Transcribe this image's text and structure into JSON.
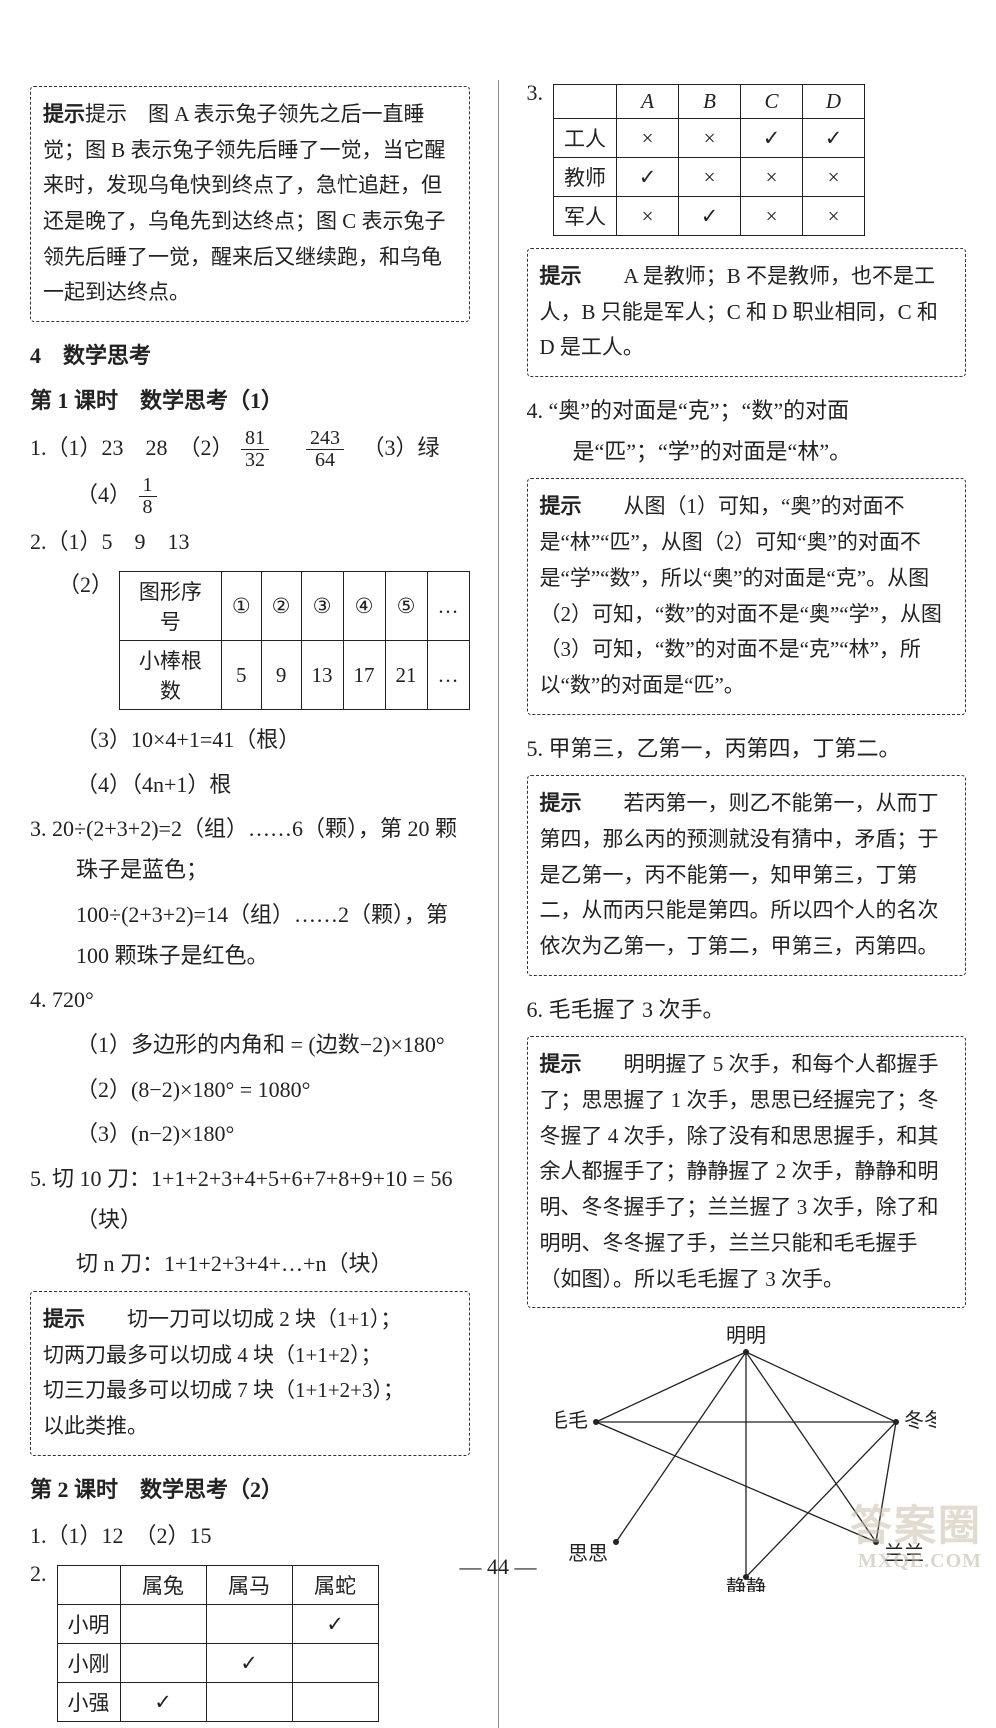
{
  "left": {
    "box1": "提示　图 A 表示兔子领先之后一直睡觉；图 B 表示兔子领先后睡了一觉，当它醒来时，发现乌龟快到终点了，急忙追赶，但还是晚了，乌龟先到达终点；图 C 表示兔子领先后睡了一觉，醒来后又继续跑，和乌龟一起到达终点。",
    "sec4": "4　数学思考",
    "lesson1": "第 1 课时　数学思考（1）",
    "q1a": "1.（1）23　28　（2）",
    "q1b": "　（3）绿",
    "q1c": "（4）",
    "q2a": "2.（1）5　9　13",
    "q2b": "（2）",
    "table1_headers": [
      "图形序号",
      "①",
      "②",
      "③",
      "④",
      "⑤",
      "…"
    ],
    "table1_row": [
      "小棒根数",
      "5",
      "9",
      "13",
      "17",
      "21",
      "…"
    ],
    "q2c": "（3）10×4+1=41（根）",
    "q2d": "（4）（4n+1）根",
    "q3a": "3. 20÷(2+3+2)=2（组）……6（颗），第 20 颗珠子是蓝色；",
    "q3b": "100÷(2+3+2)=14（组）……2（颗），第 100 颗珠子是红色。",
    "q4a": "4. 720°",
    "q4b": "（1）多边形的内角和 = (边数−2)×180°",
    "q4c": "（2）(8−2)×180° = 1080°",
    "q4d": "（3）(n−2)×180°",
    "q5a": "5. 切 10 刀：1+1+2+3+4+5+6+7+8+9+10 = 56（块）",
    "q5b": "切 n 刀：1+1+2+3+4+…+n（块）",
    "box2": "提示　切一刀可以切成 2 块（1+1）；\n切两刀最多可以切成 4 块（1+1+2）；\n切三刀最多可以切成 7 块（1+1+2+3）；\n以此类推。",
    "lesson2": "第 2 课时　数学思考（2）",
    "l2q1": "1.（1）12　（2）15",
    "l2q2": "2.",
    "table2_headers": [
      "",
      "属兔",
      "属马",
      "属蛇"
    ],
    "table2_rows": [
      [
        "小明",
        "",
        "",
        "✓"
      ],
      [
        "小刚",
        "",
        "✓",
        ""
      ],
      [
        "小强",
        "✓",
        "",
        ""
      ]
    ]
  },
  "right": {
    "q3": "3.",
    "table3_headers": [
      "",
      "A",
      "B",
      "C",
      "D"
    ],
    "table3_rows": [
      [
        "工人",
        "×",
        "×",
        "✓",
        "✓"
      ],
      [
        "教师",
        "✓",
        "×",
        "×",
        "×"
      ],
      [
        "军人",
        "×",
        "✓",
        "×",
        "×"
      ]
    ],
    "box3": "提示　A 是教师；B 不是教师，也不是工人，B 只能是军人；C 和 D 职业相同，C 和 D 是工人。",
    "q4": "4. “奥”的对面是“克”；“数”的对面是“匹”；“学”的对面是“林”。",
    "box4": "提示　从图（1）可知，“奥”的对面不是“林”“匹”，从图（2）可知“奥”的对面不是“学”“数”，所以“奥”的对面是“克”。从图（2）可知，“数”的对面不是“奥”“学”，从图（3）可知，“数”的对面不是“克”“林”，所以“数”的对面是“匹”。",
    "q5": "5. 甲第三，乙第一，丙第四，丁第二。",
    "box5": "提示　若丙第一，则乙不能第一，从而丁第四，那么丙的预测就没有猜中，矛盾；于是乙第一，丙不能第一，知甲第三，丁第二，从而丙只能是第四。所以四个人的名次依次为乙第一，丁第二，甲第三，丙第四。",
    "q6": "6. 毛毛握了 3 次手。",
    "box6": "提示　明明握了 5 次手，和每个人都握手了；思思握了 1 次手，思思已经握完了；冬冬握了 4 次手，除了没有和思思握手，和其余人都握手了；静静握了 2 次手，静静和明明、冬冬握手了；兰兰握了 3 次手，除了和明明、冬冬握了手，兰兰只能和毛毛握手（如图）。所以毛毛握了 3 次手。",
    "labels": {
      "ming": "明明",
      "dong": "冬冬",
      "lan": "兰兰",
      "jing": "静静",
      "si": "思思",
      "mao": "毛毛"
    }
  },
  "fractions": {
    "f81_32_num": "81",
    "f81_32_den": "32",
    "f243_64_num": "243",
    "f243_64_den": "64",
    "f1_8_num": "1",
    "f1_8_den": "8"
  },
  "pagefoot": "— 44 —",
  "watermark1": "答案圈",
  "watermark2": "MXQE.COM"
}
